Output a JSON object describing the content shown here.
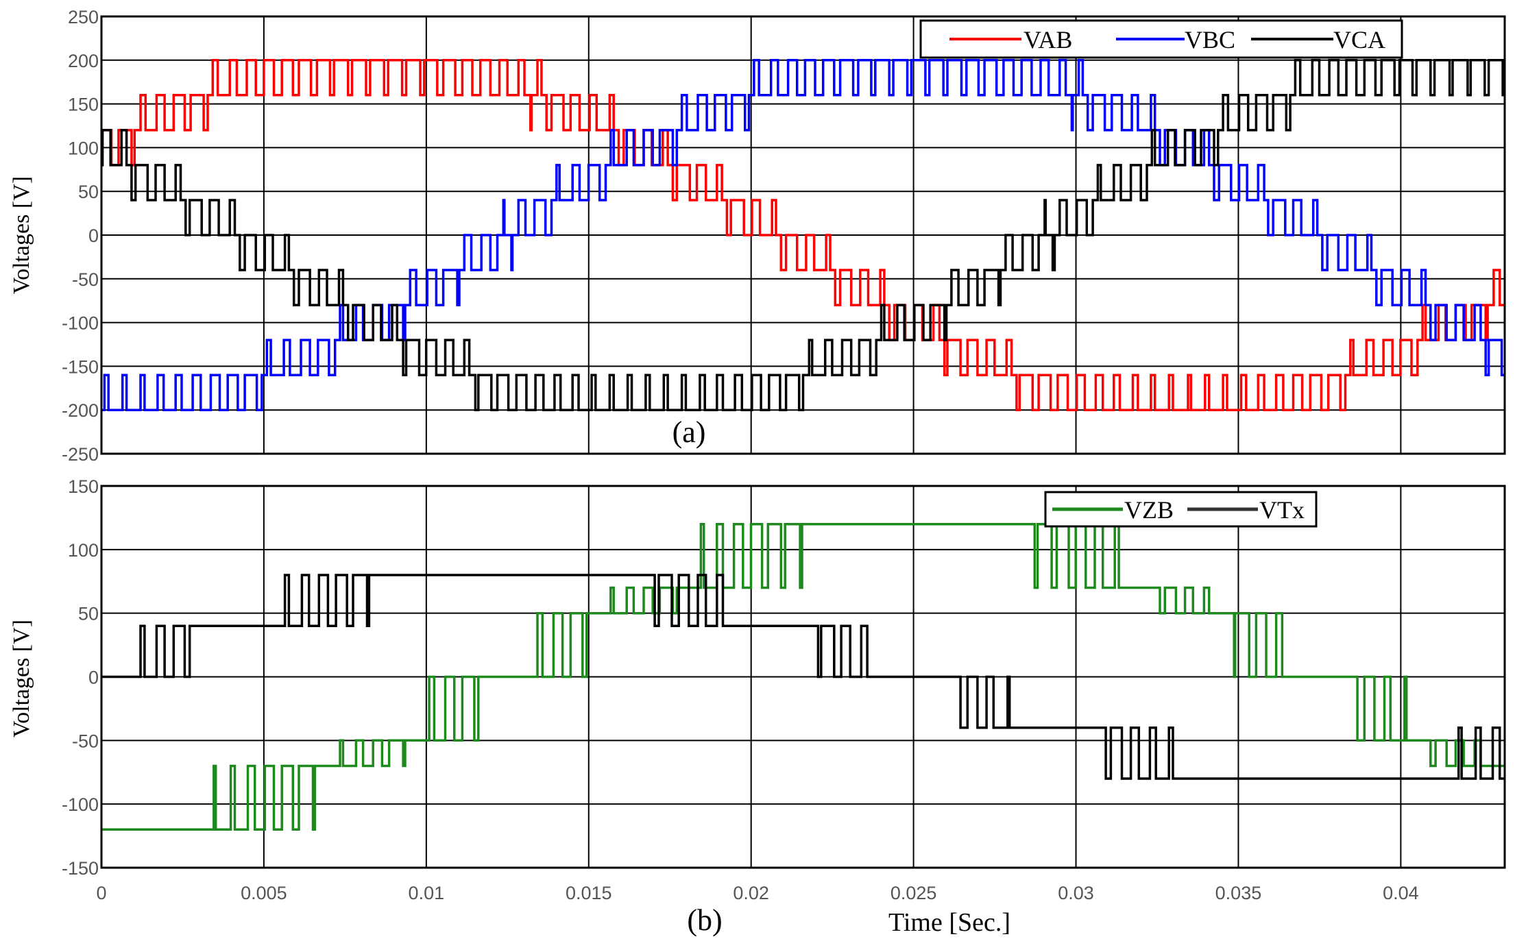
{
  "chart_data": [
    {
      "type": "line",
      "panel_label": "(a)",
      "ylabel": "Voltages [V]",
      "xlabel": "",
      "xlim": [
        0,
        0.0432
      ],
      "ylim": [
        -250,
        250
      ],
      "yticks": [
        250,
        200,
        150,
        100,
        50,
        0,
        -50,
        -100,
        -150,
        -200,
        -250
      ],
      "xgrid_at": [
        0,
        0.005,
        0.01,
        0.015,
        0.02,
        0.025,
        0.03,
        0.035,
        0.04
      ],
      "grid": true,
      "legend": "top-right",
      "frequency_hz": 20,
      "series": [
        {
          "name": "VAB",
          "color": "#ff0000",
          "amplitude": 200,
          "phase_deg": 30,
          "levels": [
            0,
            40,
            80,
            120,
            160,
            200
          ]
        },
        {
          "name": "VBC",
          "color": "#0000ff",
          "amplitude": 200,
          "phase_deg": -90,
          "levels": [
            0,
            40,
            80,
            120,
            160,
            200
          ]
        },
        {
          "name": "VCA",
          "color": "#000000",
          "amplitude": 200,
          "phase_deg": 150,
          "levels": [
            0,
            40,
            80,
            120,
            160,
            200
          ]
        }
      ]
    },
    {
      "type": "line",
      "panel_label": "(b)",
      "ylabel": "Voltages [V]",
      "xlabel": "Time [Sec.]",
      "xlim": [
        0,
        0.0432
      ],
      "ylim": [
        -150,
        150
      ],
      "yticks": [
        150,
        100,
        50,
        0,
        -50,
        -100,
        -150
      ],
      "xticks": [
        0,
        0.005,
        0.01,
        0.015,
        0.02,
        0.025,
        0.03,
        0.035,
        0.04
      ],
      "xtick_labels": [
        "0",
        "0.005",
        "0.01",
        "0.015",
        "0.02",
        "0.025",
        "0.03",
        "0.035",
        "0.04"
      ],
      "grid": true,
      "legend": "top-right",
      "frequency_hz": 20,
      "series": [
        {
          "name": "VZB",
          "color": "#1e8a1e",
          "amplitude": 120,
          "phase_deg": -90,
          "levels": [
            0,
            50,
            70,
            120
          ]
        },
        {
          "name": "VTx",
          "color": "#000000",
          "amplitude": 80,
          "phase_deg": 0,
          "levels": [
            0,
            40,
            80
          ]
        }
      ]
    }
  ]
}
